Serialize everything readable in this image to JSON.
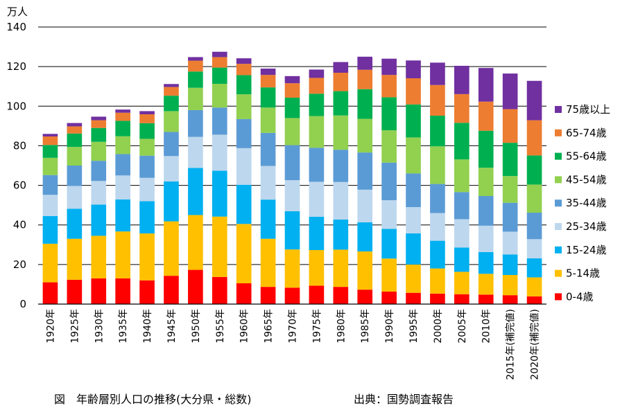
{
  "caption": "図　年齢層別人口の推移(大分県・総数)",
  "source": "出典：国勢調査報告",
  "chart_data": {
    "type": "bar",
    "stacked": true,
    "ylabel": "万人",
    "ylim": [
      0,
      140
    ],
    "yticks": [
      0,
      20,
      40,
      60,
      80,
      100,
      120,
      140
    ],
    "grid": true,
    "legend_position": "right",
    "categories": [
      "1920年",
      "1925年",
      "1930年",
      "1935年",
      "1940年",
      "1945年",
      "1950年",
      "1955年",
      "1960年",
      "1965年",
      "1970年",
      "1975年",
      "1980年",
      "1985年",
      "1990年",
      "1995年",
      "2000年",
      "2005年",
      "2010年",
      "2015年(補完値)",
      "2020年(補完値)"
    ],
    "series": [
      {
        "name": "0-4歳",
        "color": "#ff0000",
        "values": [
          11.0,
          12.3,
          13.0,
          13.0,
          12.0,
          14.3,
          17.3,
          13.7,
          10.5,
          8.7,
          8.3,
          9.3,
          8.7,
          7.3,
          6.3,
          5.7,
          5.3,
          5.0,
          4.8,
          4.5,
          3.9
        ]
      },
      {
        "name": "5-14歳",
        "color": "#ffc000",
        "values": [
          19.5,
          20.7,
          21.5,
          23.7,
          23.7,
          27.5,
          27.7,
          30.5,
          30.0,
          24.3,
          19.3,
          18.0,
          18.8,
          19.3,
          16.7,
          14.3,
          12.7,
          11.3,
          10.5,
          10.2,
          9.6
        ]
      },
      {
        "name": "15-24歳",
        "color": "#00b0f0",
        "values": [
          14.0,
          15.2,
          15.8,
          16.2,
          16.3,
          20.2,
          23.8,
          23.2,
          19.8,
          19.8,
          19.3,
          16.8,
          15.2,
          14.7,
          15.0,
          15.7,
          14.0,
          12.3,
          11.0,
          10.4,
          9.6
        ]
      },
      {
        "name": "25-34歳",
        "color": "#bdd7ee",
        "values": [
          10.7,
          11.5,
          11.9,
          12.1,
          11.8,
          12.8,
          15.7,
          18.2,
          18.5,
          17.0,
          15.7,
          17.7,
          19.0,
          16.5,
          14.5,
          13.3,
          14.0,
          14.3,
          13.3,
          11.5,
          9.7
        ]
      },
      {
        "name": "35-44歳",
        "color": "#5b9bd5",
        "values": [
          10.0,
          10.3,
          10.2,
          10.8,
          11.2,
          12.2,
          13.5,
          13.7,
          14.7,
          16.7,
          17.7,
          17.2,
          16.3,
          18.8,
          19.0,
          17.0,
          14.7,
          13.7,
          15.0,
          14.6,
          13.4
        ]
      },
      {
        "name": "45-54歳",
        "color": "#92d050",
        "values": [
          8.7,
          9.4,
          9.6,
          9.0,
          8.5,
          10.5,
          11.3,
          12.0,
          12.5,
          12.8,
          13.7,
          16.0,
          17.3,
          17.0,
          16.3,
          18.2,
          19.0,
          16.5,
          14.3,
          13.5,
          14.2
        ]
      },
      {
        "name": "55-64歳",
        "color": "#00b050",
        "values": [
          6.5,
          6.8,
          7.0,
          7.8,
          7.9,
          7.8,
          8.2,
          8.2,
          9.7,
          10.2,
          10.3,
          11.3,
          12.3,
          15.0,
          16.7,
          16.7,
          15.5,
          18.5,
          18.7,
          16.8,
          14.7
        ]
      },
      {
        "name": "65-74歳",
        "color": "#ed7d31",
        "values": [
          4.3,
          3.6,
          3.9,
          4.1,
          4.5,
          4.4,
          5.5,
          5.3,
          5.7,
          6.3,
          7.3,
          8.0,
          9.3,
          9.8,
          11.3,
          13.2,
          15.5,
          14.5,
          14.7,
          17.0,
          17.8
        ]
      },
      {
        "name": "75歳以上",
        "color": "#7030a0",
        "values": [
          1.3,
          1.7,
          1.8,
          1.6,
          1.6,
          1.5,
          1.8,
          2.7,
          2.8,
          3.2,
          3.6,
          4.2,
          5.4,
          6.6,
          8.2,
          9.0,
          11.3,
          14.3,
          17.0,
          18.0,
          19.9
        ]
      }
    ]
  }
}
